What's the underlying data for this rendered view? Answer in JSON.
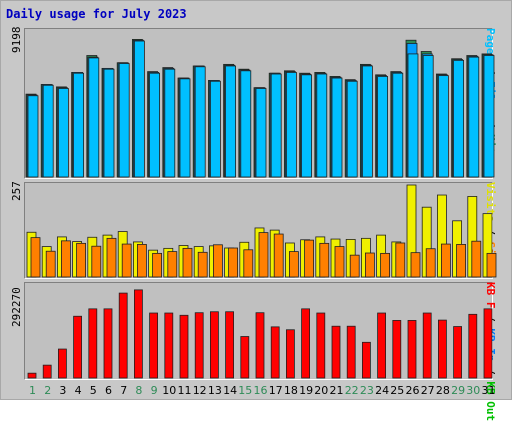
{
  "title": "Daily usage for July 2023",
  "colors": {
    "pages": "#00c0ff",
    "files": "#00a0ff",
    "hits": "#2e8b57",
    "visits": "#f0f000",
    "sites": "#ff8000",
    "kbin": "#0080ff",
    "kbout": "#00c000",
    "kbf": "#ff0000",
    "bar_outline": "#202020",
    "day_weekend": "#2e8b57",
    "day_weekday": "#000000"
  },
  "chart_data": [
    {
      "type": "bar",
      "ymax_label": "9198",
      "ylim": [
        0,
        9198
      ],
      "categories": [
        "1",
        "2",
        "3",
        "4",
        "5",
        "6",
        "7",
        "8",
        "9",
        "10",
        "11",
        "12",
        "13",
        "14",
        "15",
        "16",
        "17",
        "18",
        "19",
        "20",
        "21",
        "22",
        "23",
        "24",
        "25",
        "26",
        "27",
        "28",
        "29",
        "30",
        "31"
      ],
      "series": [
        {
          "name": "Hits",
          "values": [
            5150,
            5750,
            5600,
            6500,
            7550,
            6750,
            7100,
            8550,
            6550,
            6800,
            6150,
            6900,
            6000,
            7000,
            6700,
            5550,
            6450,
            6600,
            6450,
            6500,
            6250,
            6050,
            7000,
            6350,
            6550,
            8500,
            7800,
            6400,
            7350,
            7550,
            7650
          ]
        },
        {
          "name": "Files",
          "values": [
            5100,
            5750,
            5550,
            6500,
            7450,
            6750,
            7100,
            8500,
            6500,
            6750,
            6150,
            6900,
            6000,
            6950,
            6650,
            5550,
            6450,
            6550,
            6400,
            6450,
            6200,
            6000,
            6950,
            6300,
            6500,
            8300,
            7650,
            6350,
            7300,
            7500,
            7600
          ]
        },
        {
          "name": "Pages",
          "values": [
            5050,
            5700,
            5500,
            6450,
            7400,
            6700,
            7050,
            8450,
            6450,
            6700,
            6100,
            6850,
            5950,
            6900,
            6600,
            5500,
            6400,
            6500,
            6350,
            6400,
            6150,
            5950,
            6900,
            6250,
            6450,
            7650,
            7550,
            6300,
            7250,
            7450,
            7550
          ]
        }
      ],
      "legend": [
        "Pages",
        "Files",
        "Hits"
      ]
    },
    {
      "type": "bar",
      "ymax_label": "257",
      "ylim": [
        0,
        257
      ],
      "categories": [
        "1",
        "2",
        "3",
        "4",
        "5",
        "6",
        "7",
        "8",
        "9",
        "10",
        "11",
        "12",
        "13",
        "14",
        "15",
        "16",
        "17",
        "18",
        "19",
        "20",
        "21",
        "22",
        "23",
        "24",
        "25",
        "26",
        "27",
        "28",
        "29",
        "30",
        "31"
      ],
      "series": [
        {
          "name": "Visits",
          "values": [
            125,
            85,
            112,
            99,
            111,
            117,
            127,
            98,
            75,
            80,
            88,
            85,
            87,
            81,
            97,
            137,
            131,
            95,
            104,
            112,
            106,
            105,
            108,
            117,
            98,
            257,
            195,
            229,
            157,
            225,
            177
          ]
        },
        {
          "name": "Sites",
          "values": [
            110,
            72,
            101,
            94,
            86,
            108,
            92,
            91,
            66,
            71,
            80,
            69,
            90,
            81,
            76,
            124,
            120,
            71,
            103,
            94,
            85,
            61,
            67,
            66,
            95,
            68,
            79,
            92,
            91,
            100,
            66
          ]
        }
      ],
      "legend": [
        "Visits",
        "Sites"
      ]
    },
    {
      "type": "bar",
      "ymax_label": "292270",
      "ylim": [
        0,
        292270
      ],
      "categories": [
        "1",
        "2",
        "3",
        "4",
        "5",
        "6",
        "7",
        "8",
        "9",
        "10",
        "11",
        "12",
        "13",
        "14",
        "15",
        "16",
        "17",
        "18",
        "19",
        "20",
        "21",
        "22",
        "23",
        "24",
        "25",
        "26",
        "27",
        "28",
        "29",
        "30",
        "31"
      ],
      "series": [
        {
          "name": "KB F",
          "values": [
            15000,
            40000,
            90000,
            192000,
            215000,
            215000,
            264000,
            274000,
            202000,
            202000,
            195000,
            203000,
            206000,
            206000,
            129000,
            203000,
            159000,
            150000,
            215000,
            202000,
            161000,
            161000,
            111000,
            202000,
            179000,
            179000,
            202000,
            180000,
            160000,
            198000,
            215000
          ]
        }
      ],
      "legend": [
        "KB F",
        "KB In",
        "KB Out"
      ]
    }
  ],
  "day_colors": [
    "weekend",
    "weekend",
    "weekday",
    "weekday",
    "weekday",
    "weekday",
    "weekday",
    "weekend",
    "weekend",
    "weekday",
    "weekday",
    "weekday",
    "weekday",
    "weekday",
    "weekend",
    "weekend",
    "weekday",
    "weekday",
    "weekday",
    "weekday",
    "weekday",
    "weekend",
    "weekend",
    "weekday",
    "weekday",
    "weekday",
    "weekday",
    "weekday",
    "weekend",
    "weekend",
    "weekday"
  ]
}
